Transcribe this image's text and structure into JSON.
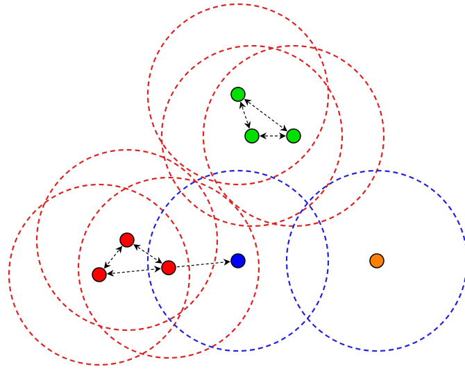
{
  "colors": {
    "red": "#ff0000",
    "green": "#00e000",
    "blue": "#0000ff",
    "orange": "#ff8000",
    "range_red": "#dd2222",
    "range_blue": "#2222dd"
  },
  "nodes": [
    {
      "id": "g1",
      "color": "green"
    },
    {
      "id": "g2",
      "color": "green"
    },
    {
      "id": "g3",
      "color": "green"
    },
    {
      "id": "r1",
      "color": "red"
    },
    {
      "id": "r2",
      "color": "red"
    },
    {
      "id": "r3",
      "color": "red"
    },
    {
      "id": "b1",
      "color": "blue"
    },
    {
      "id": "o1",
      "color": "orange"
    }
  ],
  "ranges": [
    {
      "node": "g1",
      "color": "range_red"
    },
    {
      "node": "g2",
      "color": "range_red"
    },
    {
      "node": "g3",
      "color": "range_red"
    },
    {
      "node": "r1",
      "color": "range_red"
    },
    {
      "node": "r2",
      "color": "range_red"
    },
    {
      "node": "r3",
      "color": "range_red"
    },
    {
      "node": "b1",
      "color": "range_blue"
    },
    {
      "node": "o1",
      "color": "range_blue"
    }
  ],
  "links": [
    {
      "from": "g1",
      "to": "g2",
      "direction": "both"
    },
    {
      "from": "g1",
      "to": "g3",
      "direction": "both"
    },
    {
      "from": "g2",
      "to": "g3",
      "direction": "both"
    },
    {
      "from": "r1",
      "to": "r2",
      "direction": "both"
    },
    {
      "from": "r1",
      "to": "r3",
      "direction": "both"
    },
    {
      "from": "r2",
      "to": "r3",
      "direction": "both"
    },
    {
      "from": "r3",
      "to": "b1",
      "direction": "forward"
    }
  ]
}
